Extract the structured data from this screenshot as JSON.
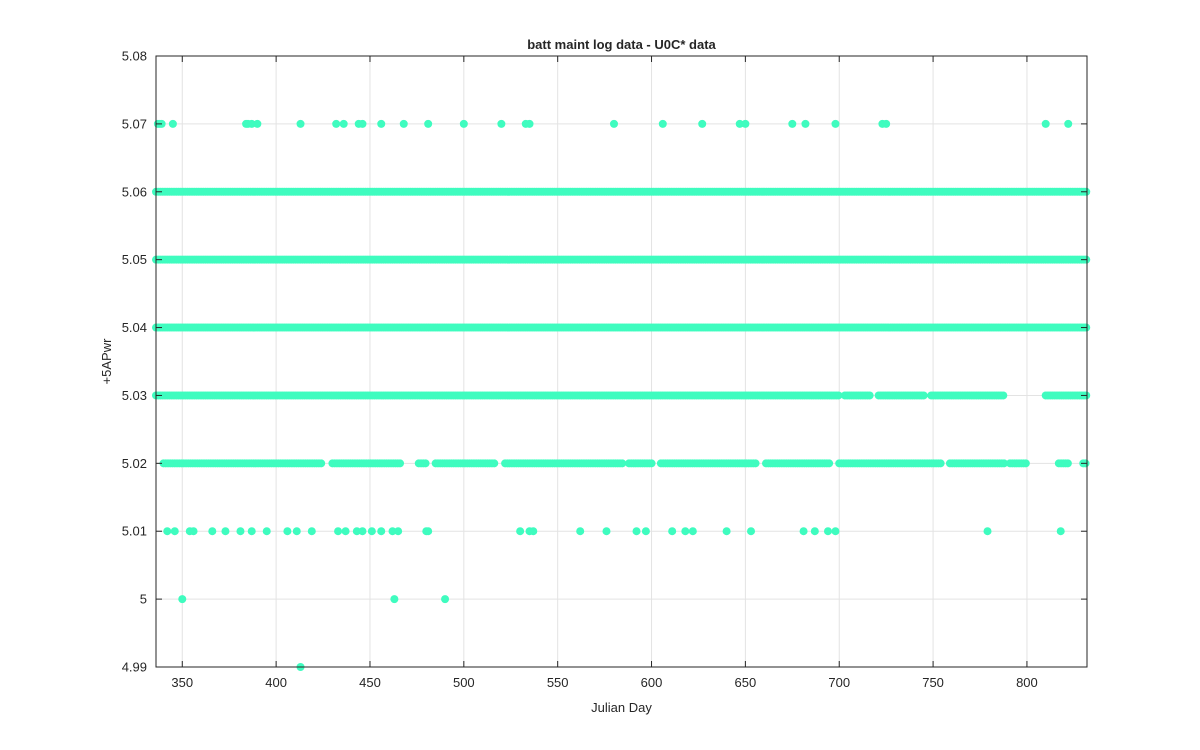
{
  "chart_data": {
    "type": "scatter",
    "title": "batt maint log data - U0C* data",
    "xlabel": "Julian Day",
    "ylabel": "+5APwr",
    "xlim": [
      336,
      832
    ],
    "ylim": [
      4.99,
      5.08
    ],
    "xticks": [
      350,
      400,
      450,
      500,
      550,
      600,
      650,
      700,
      750,
      800
    ],
    "yticks": [
      4.99,
      5.0,
      5.01,
      5.02,
      5.03,
      5.04,
      5.05,
      5.06,
      5.07,
      5.08
    ],
    "ytick_labels": [
      "4.99",
      "5",
      "5.01",
      "5.02",
      "5.03",
      "5.04",
      "5.05",
      "5.06",
      "5.07",
      "5.08"
    ],
    "grid": true,
    "marker_color": "#3ffcbf",
    "series": [
      {
        "values": [
          [
            337,
            5.07
          ],
          [
            338,
            5.07
          ],
          [
            339,
            5.07
          ],
          [
            345,
            5.07
          ],
          [
            384,
            5.07
          ],
          [
            385,
            5.07
          ],
          [
            387,
            5.07
          ],
          [
            390,
            5.07
          ],
          [
            413,
            5.07
          ],
          [
            432,
            5.07
          ],
          [
            436,
            5.07
          ],
          [
            444,
            5.07
          ],
          [
            446,
            5.07
          ],
          [
            456,
            5.07
          ],
          [
            468,
            5.07
          ],
          [
            481,
            5.07
          ],
          [
            500,
            5.07
          ],
          [
            520,
            5.07
          ],
          [
            533,
            5.07
          ],
          [
            535,
            5.07
          ],
          [
            580,
            5.07
          ],
          [
            606,
            5.07
          ],
          [
            627,
            5.07
          ],
          [
            647,
            5.07
          ],
          [
            650,
            5.07
          ],
          [
            675,
            5.07
          ],
          [
            682,
            5.07
          ],
          [
            698,
            5.07
          ],
          [
            723,
            5.07
          ],
          [
            725,
            5.07
          ],
          [
            810,
            5.07
          ],
          [
            822,
            5.07
          ],
          [
            342,
            5.01
          ],
          [
            346,
            5.01
          ],
          [
            354,
            5.01
          ],
          [
            356,
            5.01
          ],
          [
            366,
            5.01
          ],
          [
            373,
            5.01
          ],
          [
            381,
            5.01
          ],
          [
            387,
            5.01
          ],
          [
            395,
            5.01
          ],
          [
            406,
            5.01
          ],
          [
            411,
            5.01
          ],
          [
            419,
            5.01
          ],
          [
            433,
            5.01
          ],
          [
            437,
            5.01
          ],
          [
            443,
            5.01
          ],
          [
            446,
            5.01
          ],
          [
            451,
            5.01
          ],
          [
            456,
            5.01
          ],
          [
            462,
            5.01
          ],
          [
            465,
            5.01
          ],
          [
            480,
            5.01
          ],
          [
            481,
            5.01
          ],
          [
            530,
            5.01
          ],
          [
            535,
            5.01
          ],
          [
            537,
            5.01
          ],
          [
            562,
            5.01
          ],
          [
            576,
            5.01
          ],
          [
            592,
            5.01
          ],
          [
            597,
            5.01
          ],
          [
            611,
            5.01
          ],
          [
            618,
            5.01
          ],
          [
            622,
            5.01
          ],
          [
            640,
            5.01
          ],
          [
            653,
            5.01
          ],
          [
            681,
            5.01
          ],
          [
            687,
            5.01
          ],
          [
            694,
            5.01
          ],
          [
            698,
            5.01
          ],
          [
            779,
            5.01
          ],
          [
            818,
            5.01
          ],
          [
            350,
            5.0
          ],
          [
            463,
            5.0
          ],
          [
            490,
            5.0
          ],
          [
            413,
            4.99
          ]
        ],
        "bands": [
          {
            "y": 5.06,
            "x_ranges": [
              [
                336,
                832
              ]
            ]
          },
          {
            "y": 5.05,
            "x_ranges": [
              [
                336,
                832
              ]
            ]
          },
          {
            "y": 5.04,
            "x_ranges": [
              [
                336,
                832
              ]
            ]
          },
          {
            "y": 5.03,
            "x_ranges": [
              [
                336,
                700
              ],
              [
                703,
                717
              ],
              [
                721,
                745
              ],
              [
                749,
                788
              ],
              [
                810,
                832
              ]
            ]
          },
          {
            "y": 5.02,
            "x_ranges": [
              [
                340,
                424
              ],
              [
                430,
                467
              ],
              [
                476,
                480
              ],
              [
                485,
                517
              ],
              [
                522,
                585
              ],
              [
                588,
                601
              ],
              [
                605,
                656
              ],
              [
                661,
                695
              ],
              [
                700,
                755
              ],
              [
                759,
                788
              ],
              [
                791,
                800
              ],
              [
                817,
                822
              ],
              [
                830,
                832
              ]
            ]
          }
        ]
      }
    ]
  }
}
